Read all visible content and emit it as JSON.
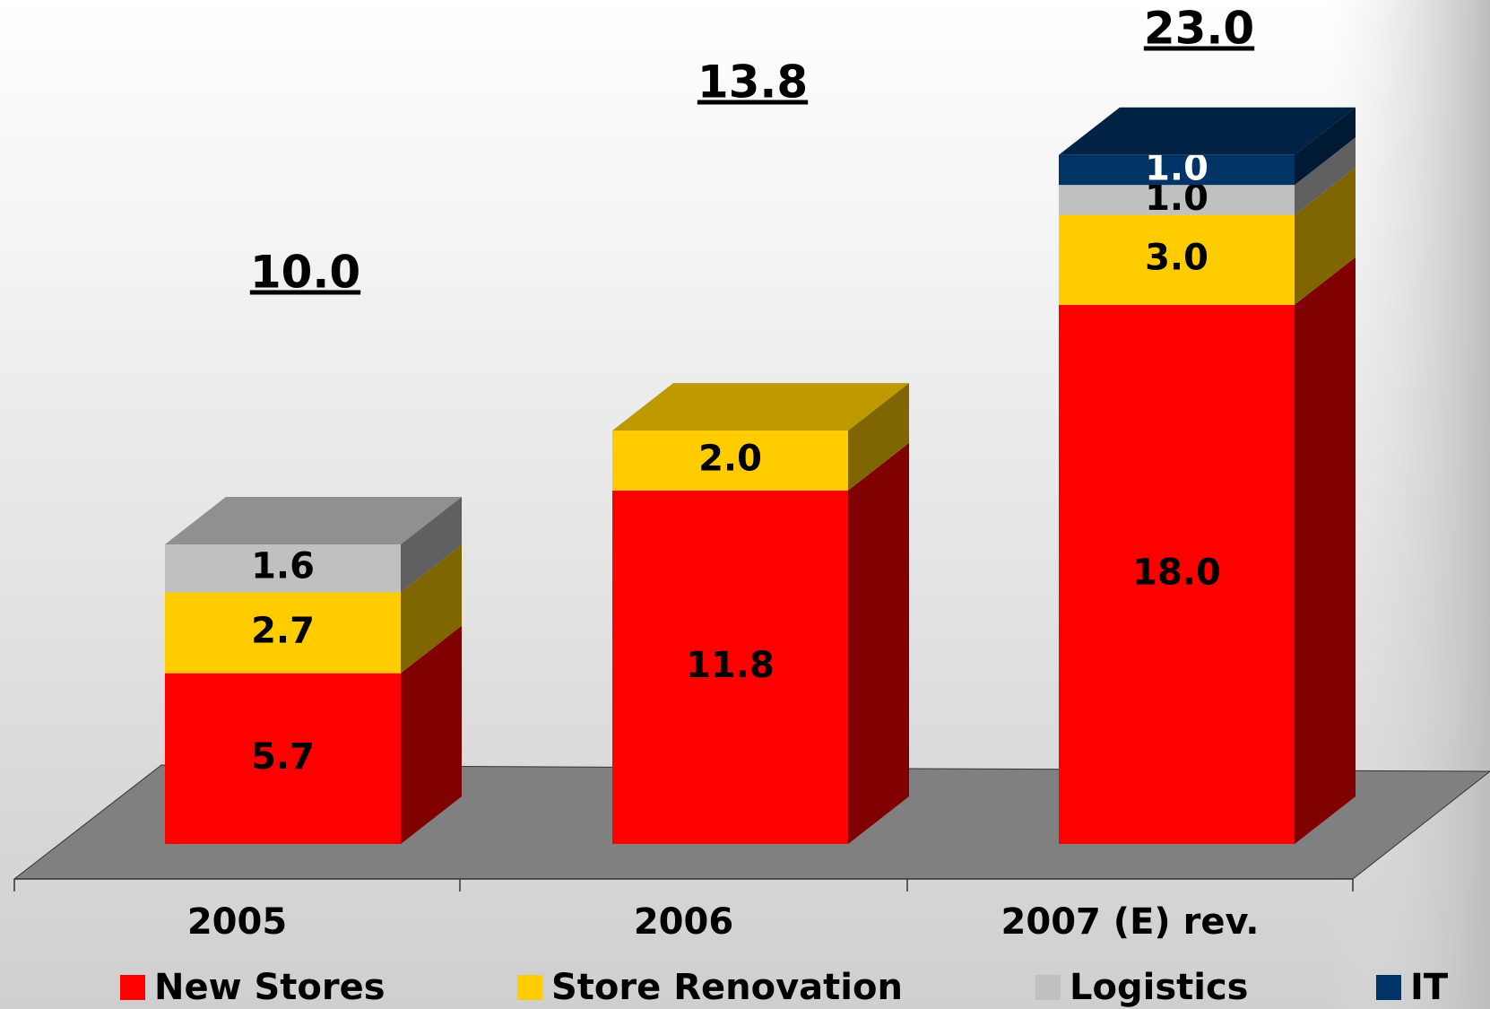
{
  "chart_data": {
    "type": "bar3d_stacked",
    "categories": [
      "2005",
      "2006",
      "2007 (E) rev."
    ],
    "series": [
      {
        "name": "New Stores",
        "color": "#ff0000",
        "side_color": "#800000",
        "top_color": "#c00000",
        "label_color": "#000000",
        "values": [
          5.7,
          11.8,
          18.0
        ],
        "value_labels": [
          "5.7",
          "11.8",
          "18.0"
        ]
      },
      {
        "name": "Store Renovation",
        "color": "#ffcc00",
        "side_color": "#806600",
        "top_color": "#bf9900",
        "label_color": "#000000",
        "values": [
          2.7,
          2.0,
          3.0
        ],
        "value_labels": [
          "2.7",
          "2.0",
          "3.0"
        ]
      },
      {
        "name": "Logistics",
        "color": "#c0c0c0",
        "side_color": "#606060",
        "top_color": "#909090",
        "label_color": "#000000",
        "values": [
          1.6,
          null,
          1.0
        ],
        "value_labels": [
          "1.6",
          null,
          "1.0"
        ]
      },
      {
        "name": "IT",
        "color": "#003366",
        "side_color": "#001a33",
        "top_color": "#002244",
        "label_color": "#ffffff",
        "values": [
          null,
          null,
          1.0
        ],
        "value_labels": [
          null,
          null,
          "1.0"
        ]
      }
    ],
    "totals": [
      10.0,
      13.8,
      23.0
    ],
    "total_labels": [
      "10.0",
      "13.8",
      "23.0"
    ]
  }
}
